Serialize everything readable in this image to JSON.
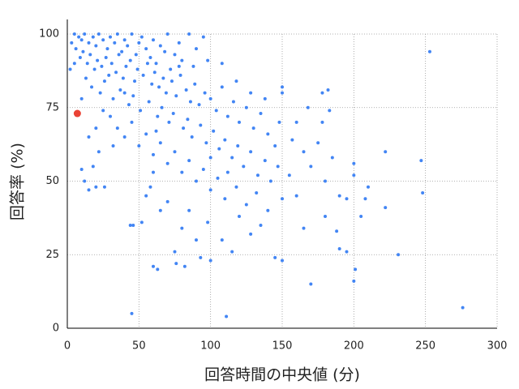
{
  "chart_data": {
    "type": "scatter",
    "xlabel": "回答時間の中央値 (分)",
    "ylabel": "回答率 (%)",
    "xlim": [
      0,
      300
    ],
    "ylim": [
      0,
      100
    ],
    "xticks": [
      0,
      50,
      100,
      150,
      200,
      250,
      300
    ],
    "yticks": [
      0,
      25,
      50,
      75,
      100
    ],
    "grid": true,
    "series": [
      {
        "color": "#4285f4",
        "x": [
          5,
          8,
          10,
          12,
          15,
          18,
          20,
          22,
          25,
          28,
          30,
          33,
          35,
          38,
          40,
          42,
          45,
          48,
          50,
          52,
          55,
          58,
          60,
          62,
          65,
          68,
          70,
          72,
          75,
          78,
          80,
          85,
          88,
          90,
          95,
          6,
          9,
          11,
          14,
          16,
          19,
          21,
          24,
          27,
          29,
          31,
          34,
          36,
          39,
          41,
          44,
          47,
          49,
          53,
          56,
          59,
          61,
          64,
          67,
          69,
          73,
          76,
          79,
          83,
          86,
          89,
          92,
          96,
          100,
          104,
          108,
          112,
          116,
          120,
          125,
          130,
          135,
          140,
          13,
          17,
          23,
          26,
          32,
          37,
          43,
          46,
          51,
          57,
          63,
          66,
          71,
          74,
          81,
          84,
          87,
          93,
          97,
          102,
          106,
          110,
          115,
          119,
          123,
          128,
          133,
          138,
          142,
          147,
          30,
          35,
          40,
          45,
          50,
          55,
          60,
          65,
          70,
          75,
          80,
          85,
          90,
          95,
          100,
          105,
          110,
          118,
          125,
          132,
          140,
          155,
          160,
          165,
          170,
          175,
          180,
          185,
          190,
          178,
          183,
          160,
          145,
          150,
          135,
          120,
          98,
          85,
          70,
          58,
          90,
          128,
          165,
          180,
          188,
          195,
          65,
          80,
          100,
          108,
          118,
          128,
          138,
          150,
          98,
          78,
          5,
          3,
          2,
          60,
          55,
          52,
          75,
          93,
          40,
          25,
          20,
          15,
          22,
          18,
          10,
          32,
          62,
          112,
          148,
          157,
          200,
          208,
          253,
          276,
          247,
          248,
          231,
          222,
          222,
          200,
          201,
          170,
          111,
          45,
          44,
          46,
          60,
          63,
          76,
          82,
          190,
          195,
          210,
          205,
          200,
          182,
          178,
          168,
          150,
          150,
          145,
          12,
          10,
          15,
          20,
          26,
          115,
          108,
          100
        ],
        "values": [
          100,
          99,
          98,
          100,
          97,
          99,
          96,
          100,
          98,
          95,
          99,
          97,
          100,
          94,
          98,
          96,
          100,
          93,
          97,
          99,
          95,
          92,
          98,
          90,
          96,
          94,
          100,
          88,
          93,
          97,
          91,
          100,
          89,
          95,
          99,
          95,
          92,
          94,
          90,
          93,
          88,
          91,
          89,
          92,
          86,
          90,
          87,
          93,
          85,
          89,
          91,
          84,
          88,
          86,
          90,
          83,
          87,
          82,
          85,
          80,
          84,
          79,
          86,
          81,
          77,
          83,
          76,
          80,
          78,
          74,
          82,
          72,
          77,
          70,
          75,
          68,
          73,
          66,
          85,
          82,
          80,
          84,
          78,
          81,
          76,
          79,
          74,
          77,
          72,
          75,
          70,
          73,
          68,
          71,
          65,
          69,
          63,
          67,
          61,
          64,
          58,
          62,
          55,
          60,
          52,
          57,
          50,
          55,
          72,
          68,
          65,
          70,
          62,
          66,
          59,
          63,
          56,
          60,
          53,
          57,
          50,
          54,
          47,
          51,
          44,
          48,
          42,
          46,
          40,
          52,
          45,
          60,
          55,
          63,
          50,
          58,
          45,
          70,
          74,
          70,
          62,
          44,
          35,
          38,
          36,
          40,
          43,
          48,
          30,
          32,
          34,
          38,
          33,
          44,
          40,
          34,
          58,
          90,
          84,
          80,
          78,
          80,
          91,
          89,
          90,
          97,
          88,
          53,
          45,
          36,
          26,
          24,
          80,
          74,
          68,
          65,
          60,
          55,
          78,
          62,
          67,
          53,
          70,
          64,
          52,
          44,
          94,
          7,
          57,
          46,
          25,
          60,
          41,
          16,
          20,
          15,
          4,
          5,
          35,
          35,
          21,
          20,
          22,
          21,
          27,
          26,
          48,
          38,
          56,
          81,
          80,
          75,
          82,
          23,
          24,
          50,
          54,
          47,
          48,
          48,
          26,
          30,
          23
        ]
      },
      {
        "color": "#ea4335",
        "x": [
          7
        ],
        "values": [
          73
        ]
      }
    ]
  }
}
